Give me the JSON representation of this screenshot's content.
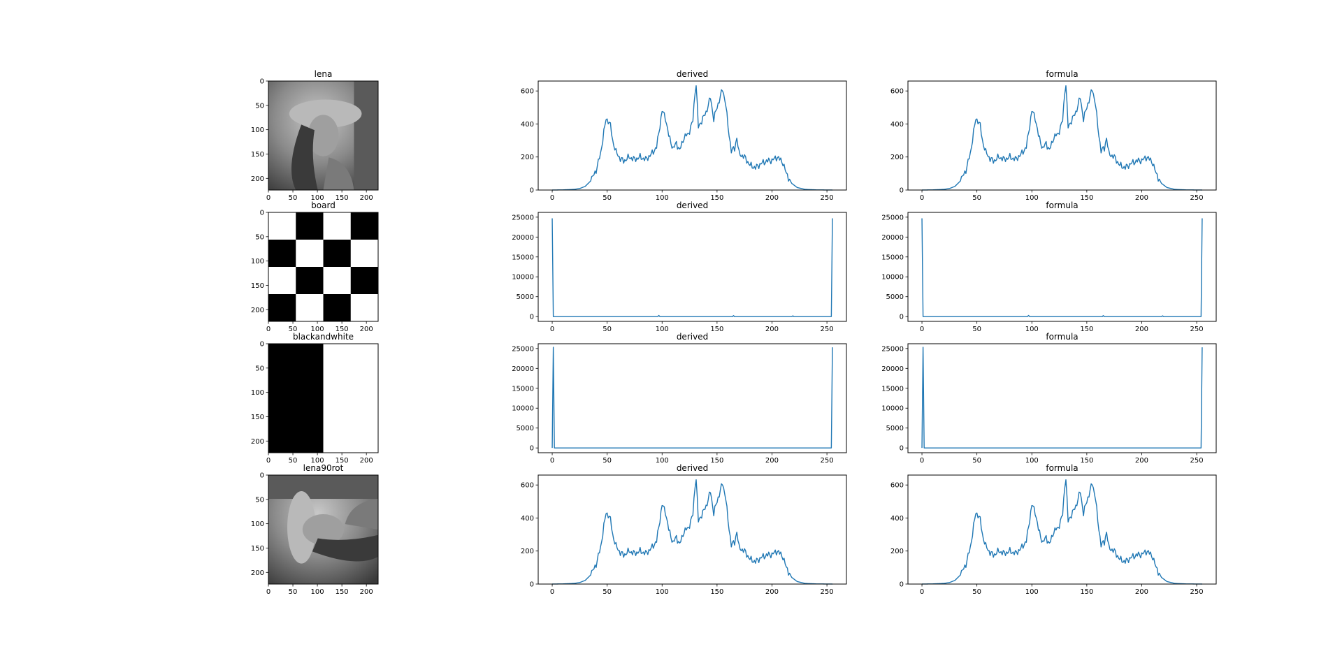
{
  "figure": {
    "rows": [
      {
        "image_title": "lena",
        "image_kind": "photo-lena",
        "hist_kind": "lena",
        "hist_ylim": [
          0,
          660
        ],
        "hist_yticks": [
          0,
          200,
          400,
          600
        ]
      },
      {
        "image_title": "board",
        "image_kind": "checkerboard",
        "hist_kind": "board",
        "hist_ylim": [
          -1200,
          26200
        ],
        "hist_yticks": [
          0,
          5000,
          10000,
          15000,
          20000,
          25000
        ]
      },
      {
        "image_title": "blackandwhite",
        "image_kind": "half-black-white",
        "hist_kind": "bw",
        "hist_ylim": [
          -1200,
          26200
        ],
        "hist_yticks": [
          0,
          5000,
          10000,
          15000,
          20000,
          25000
        ]
      },
      {
        "image_title": "lena90rot",
        "image_kind": "photo-lena-rotated-90",
        "hist_kind": "lena",
        "hist_ylim": [
          0,
          660
        ],
        "hist_yticks": [
          0,
          200,
          400,
          600
        ]
      }
    ],
    "hist_columns": [
      "derived",
      "formula"
    ],
    "image_axis_ticks": [
      0,
      50,
      100,
      150,
      200
    ],
    "image_axis_lim": [
      0,
      224
    ],
    "hist_xlim": [
      -12.75,
      267.75
    ],
    "hist_xticks": [
      0,
      50,
      100,
      150,
      200,
      250
    ],
    "line_color": "#1f77b4"
  },
  "chart_data": [
    {
      "type": "line",
      "title": "derived",
      "x": "pixel intensity 0-255",
      "series": [
        {
          "values_keypoints": [
            [
              0,
              0
            ],
            [
              10,
              1
            ],
            [
              20,
              4
            ],
            [
              25,
              9
            ],
            [
              30,
              22
            ],
            [
              35,
              55
            ],
            [
              40,
              120
            ],
            [
              44,
              220
            ],
            [
              47,
              350
            ],
            [
              49,
              430
            ],
            [
              51,
              420
            ],
            [
              53,
              390
            ],
            [
              55,
              300
            ],
            [
              58,
              230
            ],
            [
              62,
              190
            ],
            [
              65,
              175
            ],
            [
              70,
              200
            ],
            [
              75,
              185
            ],
            [
              80,
              200
            ],
            [
              85,
              185
            ],
            [
              90,
              215
            ],
            [
              95,
              260
            ],
            [
              98,
              390
            ],
            [
              100,
              480
            ],
            [
              103,
              440
            ],
            [
              106,
              330
            ],
            [
              110,
              250
            ],
            [
              113,
              285
            ],
            [
              116,
              240
            ],
            [
              120,
              320
            ],
            [
              124,
              340
            ],
            [
              128,
              420
            ],
            [
              130,
              600
            ],
            [
              131,
              640
            ],
            [
              133,
              380
            ],
            [
              136,
              420
            ],
            [
              140,
              470
            ],
            [
              144,
              560
            ],
            [
              147,
              430
            ],
            [
              150,
              500
            ],
            [
              155,
              610
            ],
            [
              158,
              520
            ],
            [
              160,
              380
            ],
            [
              163,
              240
            ],
            [
              166,
              250
            ],
            [
              168,
              320
            ],
            [
              170,
              220
            ],
            [
              175,
              200
            ],
            [
              180,
              150
            ],
            [
              185,
              135
            ],
            [
              190,
              160
            ],
            [
              195,
              175
            ],
            [
              200,
              180
            ],
            [
              205,
              200
            ],
            [
              210,
              165
            ],
            [
              213,
              100
            ],
            [
              218,
              40
            ],
            [
              223,
              15
            ],
            [
              230,
              4
            ],
            [
              240,
              1
            ],
            [
              255,
              0
            ]
          ]
        }
      ],
      "xlim": [
        -12.75,
        267.75
      ],
      "ylim": [
        0,
        660
      ]
    },
    {
      "type": "line",
      "title": "formula",
      "series": [
        {
          "values_keypoints": "same as derived (lena)"
        }
      ],
      "xlim": [
        -12.75,
        267.75
      ],
      "ylim": [
        0,
        660
      ]
    },
    {
      "type": "line",
      "title": "derived",
      "series": [
        {
          "values_keypoints": [
            [
              0,
              24700
            ],
            [
              1,
              0
            ],
            [
              97,
              300
            ],
            [
              98,
              0
            ],
            [
              165,
              250
            ],
            [
              166,
              0
            ],
            [
              219,
              200
            ],
            [
              220,
              0
            ],
            [
              254,
              0
            ],
            [
              255,
              24700
            ]
          ]
        }
      ],
      "xlim": [
        -12.75,
        267.75
      ],
      "ylim": [
        -1200,
        26200
      ]
    },
    {
      "type": "line",
      "title": "formula",
      "series": [
        {
          "values_keypoints": "same as derived (board)"
        }
      ],
      "xlim": [
        -12.75,
        267.75
      ],
      "ylim": [
        -1200,
        26200
      ]
    },
    {
      "type": "line",
      "title": "derived",
      "series": [
        {
          "values_keypoints": [
            [
              0,
              0
            ],
            [
              1,
              25300
            ],
            [
              2,
              0
            ],
            [
              254,
              0
            ],
            [
              255,
              25300
            ]
          ]
        }
      ],
      "xlim": [
        -12.75,
        267.75
      ],
      "ylim": [
        -1200,
        26200
      ]
    },
    {
      "type": "line",
      "title": "formula",
      "series": [
        {
          "values_keypoints": "same as derived (blackandwhite)"
        }
      ],
      "xlim": [
        -12.75,
        267.75
      ],
      "ylim": [
        -1200,
        26200
      ]
    },
    {
      "type": "line",
      "title": "derived",
      "series": [
        {
          "values_keypoints": "same as lena"
        }
      ],
      "xlim": [
        -12.75,
        267.75
      ],
      "ylim": [
        0,
        660
      ]
    },
    {
      "type": "line",
      "title": "formula",
      "series": [
        {
          "values_keypoints": "same as lena"
        }
      ],
      "xlim": [
        -12.75,
        267.75
      ],
      "ylim": [
        0,
        660
      ]
    }
  ]
}
